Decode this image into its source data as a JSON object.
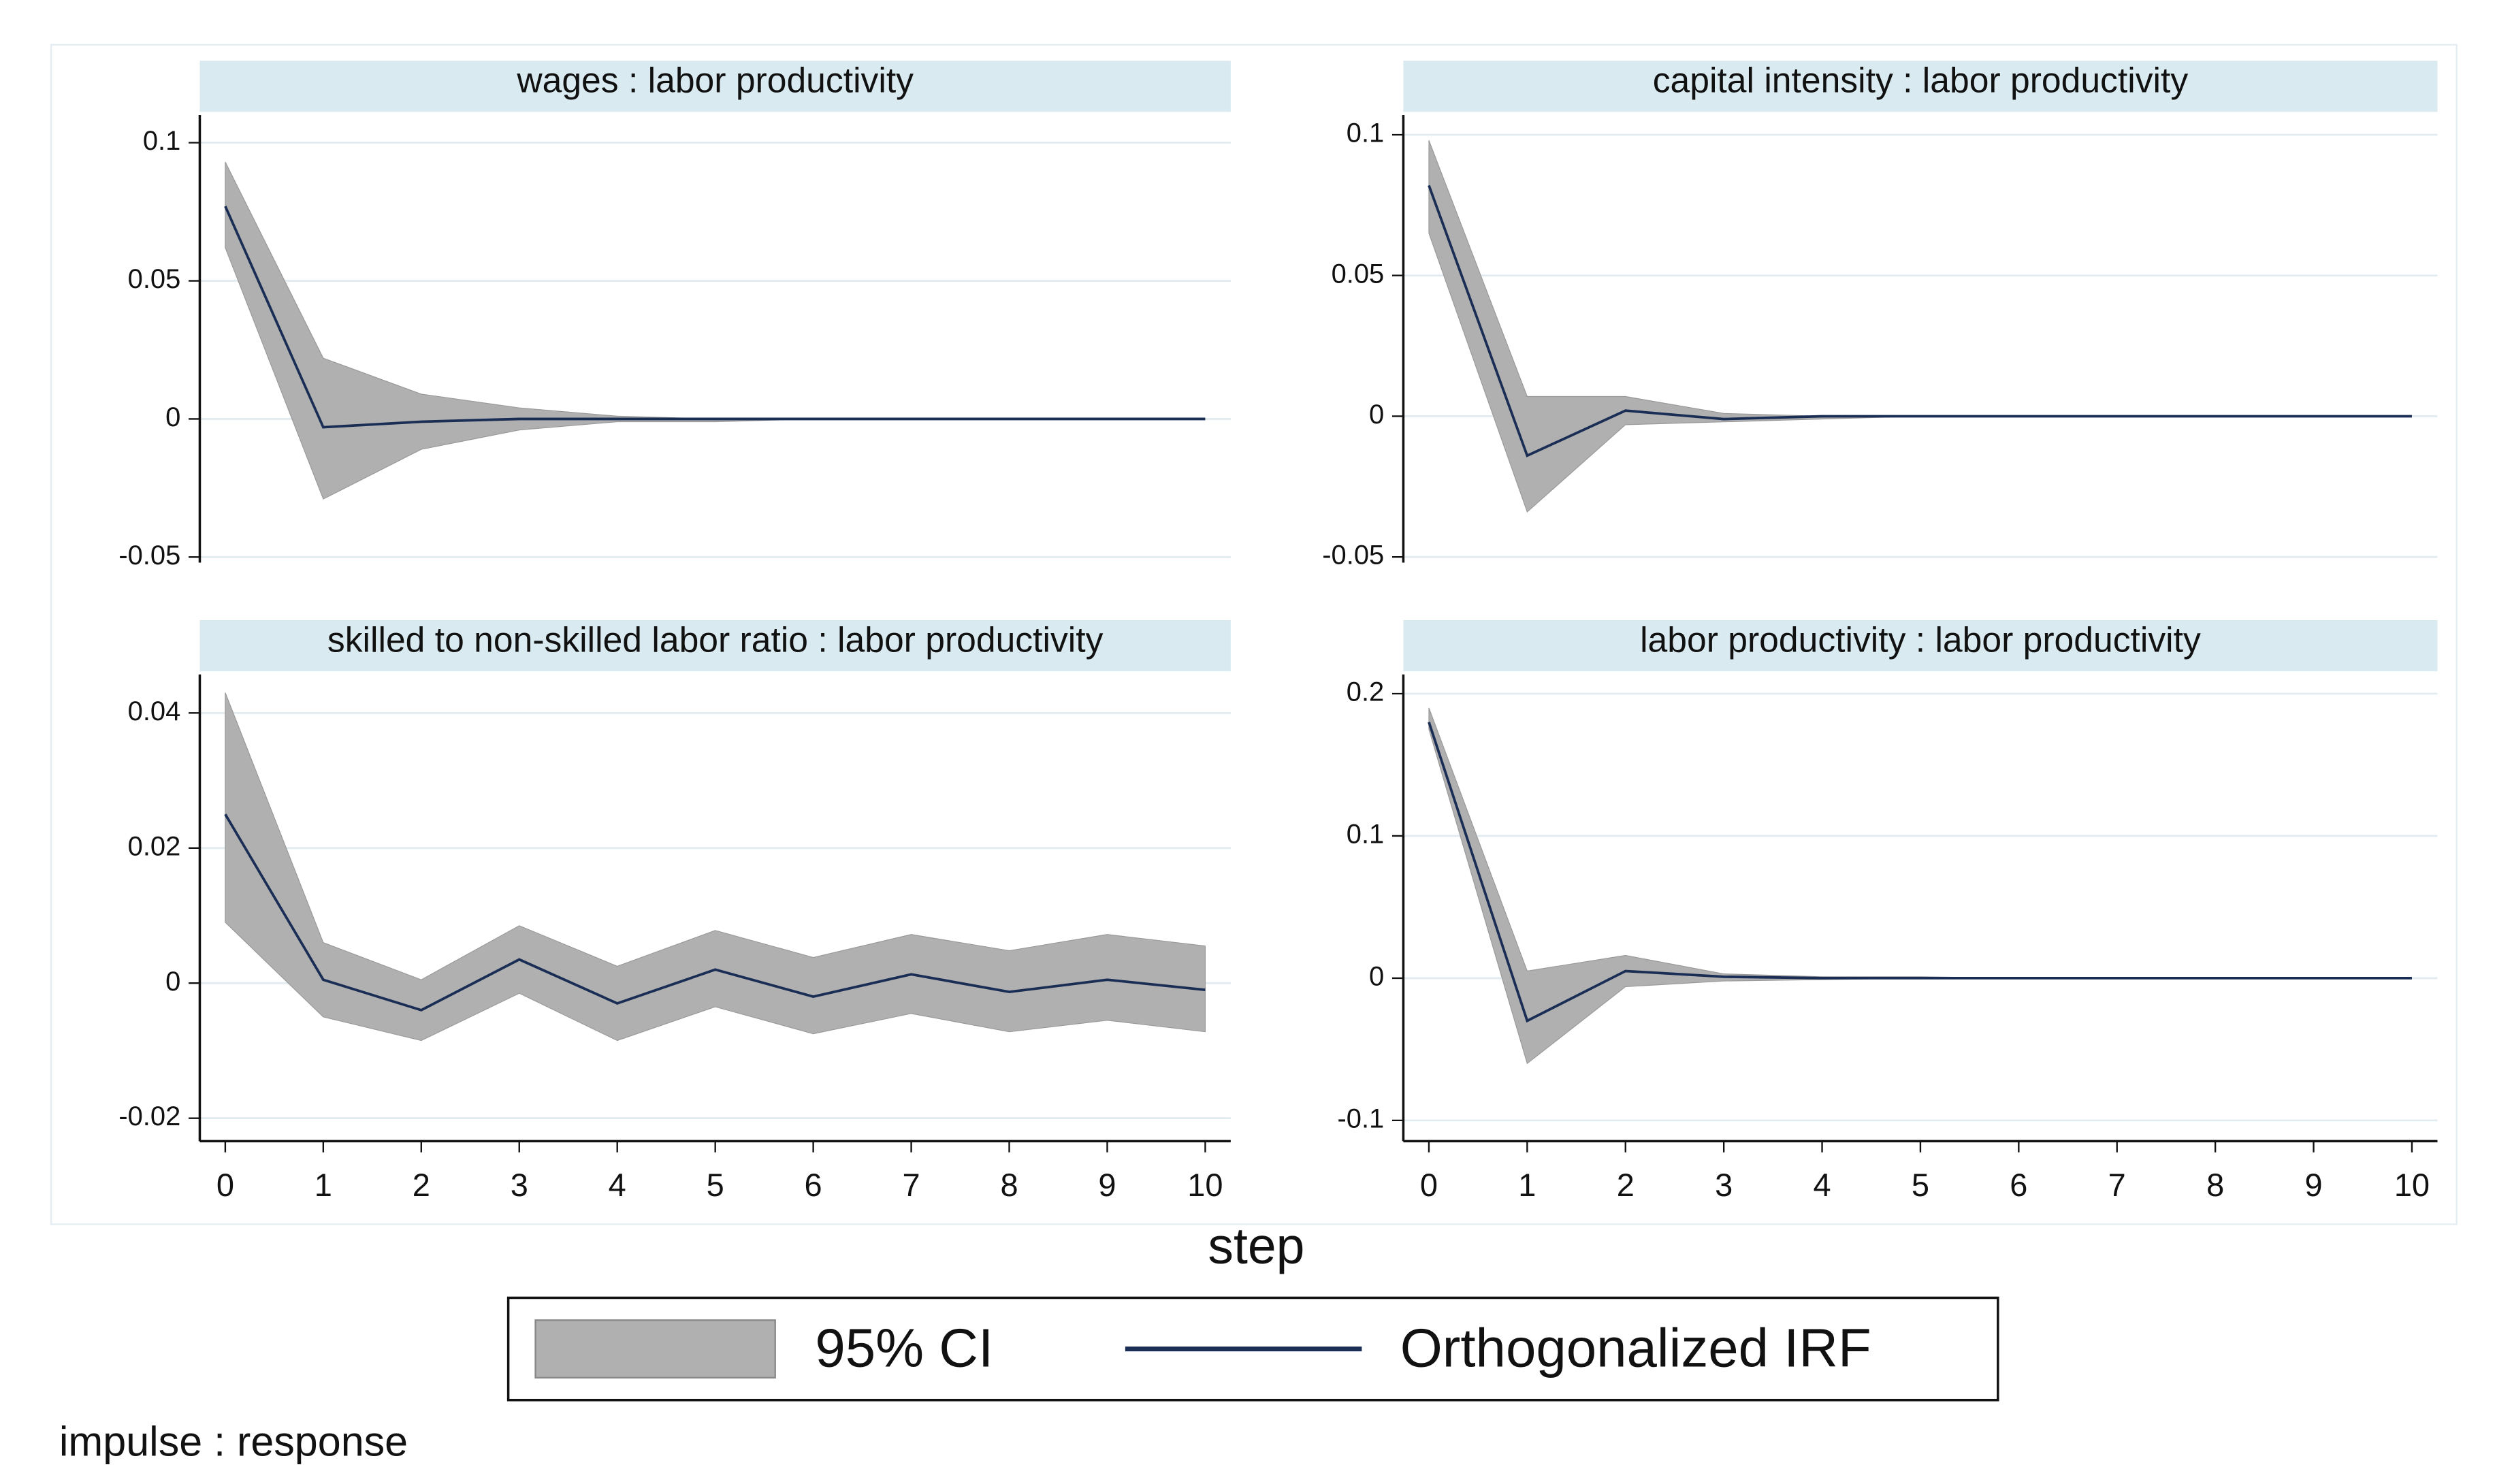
{
  "chart_data": [
    {
      "type": "line",
      "title": "wages : labor productivity",
      "x": [
        0,
        1,
        2,
        3,
        4,
        5,
        6,
        7,
        8,
        9,
        10
      ],
      "xlim": [
        -0.26,
        10.26
      ],
      "values": [
        0.077,
        -0.003,
        -0.001,
        0,
        0,
        0,
        0,
        0,
        0,
        0,
        0
      ],
      "ci_lower": [
        0.062,
        -0.029,
        -0.011,
        -0.004,
        -0.001,
        -0.001,
        0,
        0,
        0,
        0,
        0
      ],
      "ci_upper": [
        0.093,
        0.022,
        0.009,
        0.004,
        0.001,
        0,
        0,
        0,
        0,
        0,
        0
      ],
      "ylim": [
        -0.052,
        0.11
      ],
      "yticks": [
        -0.05,
        0,
        0.05,
        0.1
      ],
      "grid": true
    },
    {
      "type": "line",
      "title": "capital intensity : labor productivity",
      "x": [
        0,
        1,
        2,
        3,
        4,
        5,
        6,
        7,
        8,
        9,
        10
      ],
      "xlim": [
        -0.26,
        10.26
      ],
      "values": [
        0.082,
        -0.014,
        0.002,
        -0.001,
        0,
        0,
        0,
        0,
        0,
        0,
        0
      ],
      "ci_lower": [
        0.065,
        -0.034,
        -0.003,
        -0.002,
        -0.001,
        0,
        0,
        0,
        0,
        0,
        0
      ],
      "ci_upper": [
        0.098,
        0.007,
        0.007,
        0.001,
        0,
        0,
        0,
        0,
        0,
        0,
        0
      ],
      "ylim": [
        -0.052,
        0.107
      ],
      "yticks": [
        -0.05,
        0,
        0.05,
        0.1
      ],
      "grid": true
    },
    {
      "type": "line",
      "title": "skilled to non-skilled labor ratio : labor productivity",
      "x": [
        0,
        1,
        2,
        3,
        4,
        5,
        6,
        7,
        8,
        9,
        10
      ],
      "xlim": [
        -0.26,
        10.26
      ],
      "xticks": [
        0,
        1,
        2,
        3,
        4,
        5,
        6,
        7,
        8,
        9,
        10
      ],
      "values": [
        0.025,
        0.0005,
        -0.004,
        0.0035,
        -0.003,
        0.002,
        -0.002,
        0.0013,
        -0.0013,
        0.0005,
        -0.001
      ],
      "ci_lower": [
        0.009,
        -0.005,
        -0.0085,
        -0.0015,
        -0.0085,
        -0.0035,
        -0.0075,
        -0.0045,
        -0.0072,
        -0.0055,
        -0.0072
      ],
      "ci_upper": [
        0.043,
        0.006,
        0.0005,
        0.0085,
        0.0025,
        0.0078,
        0.0038,
        0.0072,
        0.0048,
        0.0072,
        0.0055
      ],
      "ylim": [
        -0.0234,
        0.0457
      ],
      "yticks": [
        -0.02,
        0,
        0.02,
        0.04
      ],
      "grid": true
    },
    {
      "type": "line",
      "title": "labor productivity : labor productivity",
      "x": [
        0,
        1,
        2,
        3,
        4,
        5,
        6,
        7,
        8,
        9,
        10
      ],
      "xlim": [
        -0.26,
        10.26
      ],
      "xticks": [
        0,
        1,
        2,
        3,
        4,
        5,
        6,
        7,
        8,
        9,
        10
      ],
      "values": [
        0.18,
        -0.03,
        0.005,
        0.001,
        0,
        0,
        0,
        0,
        0,
        0,
        0
      ],
      "ci_lower": [
        0.175,
        -0.06,
        -0.006,
        -0.002,
        -0.001,
        0,
        0,
        0,
        0,
        0,
        0
      ],
      "ci_upper": [
        0.19,
        0.005,
        0.016,
        0.003,
        0.001,
        0.001,
        0,
        0,
        0,
        0,
        0
      ],
      "ylim": [
        -0.1146,
        0.2135
      ],
      "yticks": [
        -0.1,
        0,
        0.1,
        0.2
      ],
      "grid": true
    }
  ],
  "xlabel": "step",
  "legend": [
    {
      "name": "95% CI",
      "color": "#b0b0b0"
    },
    {
      "name": "Orthogonalized IRF",
      "color": "#1a2e55"
    }
  ],
  "note": "impulse : response"
}
